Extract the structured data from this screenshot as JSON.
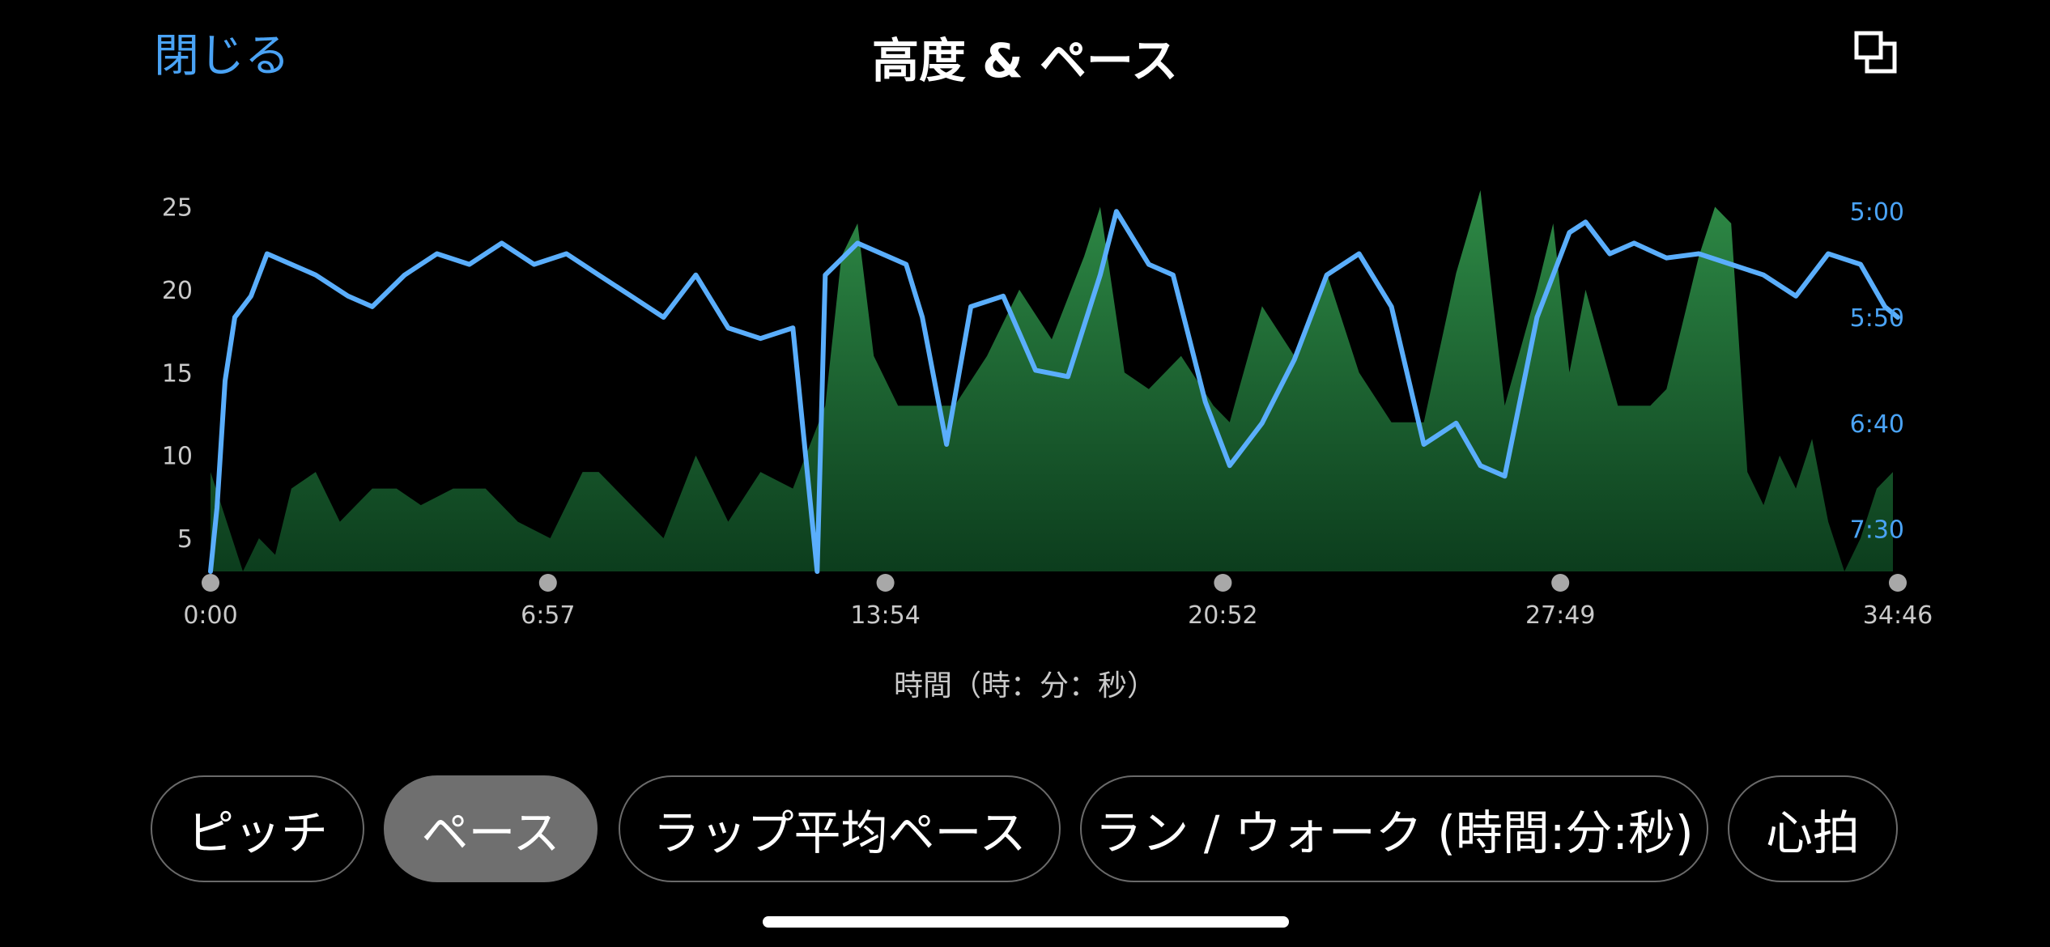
{
  "header": {
    "close_label": "閉じる",
    "title": "高度 & ペース",
    "expand_icon": "expand-icon"
  },
  "tabs": [
    {
      "label": "ピッチ",
      "active": false
    },
    {
      "label": "ペース",
      "active": true
    },
    {
      "label": "ラップ平均ペース",
      "active": false
    },
    {
      "label": "ラン / ウォーク (時間:分:秒)",
      "active": false
    },
    {
      "label": "心拍",
      "active": false
    }
  ],
  "colors": {
    "accent": "#4aa3f5",
    "elevation_fill_top": "#2e8a46",
    "elevation_fill_bottom": "#0c3d1d",
    "pace_line": "#5aaefc",
    "axis_text": "#c9c9c9",
    "tick_dot": "#a8a8a8"
  },
  "chart_data": {
    "type": "area",
    "xlabel": "時間（時：分：秒）",
    "x_ticks": [
      "0:00",
      "6:57",
      "13:54",
      "20:52",
      "27:49",
      "34:46"
    ],
    "x_range_seconds": [
      0,
      2086
    ],
    "y_left": {
      "ticks": [
        5,
        10,
        15,
        20,
        25
      ],
      "range": [
        3,
        26
      ]
    },
    "y_right": {
      "ticks": [
        "5:00",
        "5:50",
        "6:40",
        "7:30"
      ],
      "range_seconds_per_km": [
        290,
        470
      ],
      "inverted": true
    },
    "series": [
      {
        "kind": "elevation",
        "axis": "left",
        "style": "area",
        "x": [
          0,
          20,
          40,
          60,
          80,
          100,
          130,
          160,
          200,
          230,
          260,
          300,
          340,
          380,
          420,
          460,
          480,
          520,
          560,
          600,
          640,
          680,
          720,
          760,
          780,
          800,
          820,
          850,
          880,
          920,
          960,
          1000,
          1040,
          1080,
          1100,
          1130,
          1160,
          1200,
          1240,
          1260,
          1300,
          1340,
          1380,
          1420,
          1460,
          1500,
          1540,
          1570,
          1600,
          1640,
          1660,
          1680,
          1700,
          1740,
          1780,
          1800,
          1820,
          1840,
          1860,
          1880,
          1900,
          1920,
          1940,
          1960,
          1980,
          2000,
          2020,
          2040,
          2060,
          2080
        ],
        "y": [
          9,
          6,
          3,
          5,
          4,
          8,
          9,
          6,
          8,
          8,
          7,
          8,
          8,
          6,
          5,
          9,
          9,
          7,
          5,
          10,
          6,
          9,
          8,
          13,
          22,
          24,
          16,
          13,
          13,
          13,
          16,
          20,
          17,
          22,
          25,
          15,
          14,
          16,
          13,
          12,
          19,
          16,
          21,
          15,
          12,
          12,
          21,
          26,
          13,
          20,
          24,
          15,
          20,
          13,
          13,
          14,
          18,
          22,
          25,
          24,
          9,
          7,
          10,
          8,
          11,
          6,
          3,
          5,
          8,
          9
        ]
      },
      {
        "kind": "pace",
        "axis": "right",
        "style": "line",
        "x": [
          0,
          8,
          18,
          30,
          50,
          70,
          100,
          130,
          170,
          200,
          240,
          280,
          320,
          360,
          400,
          440,
          480,
          520,
          560,
          600,
          640,
          680,
          720,
          750,
          760,
          800,
          830,
          860,
          880,
          910,
          940,
          980,
          1020,
          1060,
          1100,
          1120,
          1160,
          1190,
          1230,
          1260,
          1300,
          1340,
          1380,
          1420,
          1460,
          1500,
          1540,
          1570,
          1600,
          1640,
          1680,
          1700,
          1730,
          1760,
          1800,
          1840,
          1880,
          1920,
          1960,
          2000,
          2040,
          2070,
          2086
        ],
        "y": [
          470,
          440,
          380,
          350,
          340,
          320,
          325,
          330,
          340,
          345,
          330,
          320,
          325,
          315,
          325,
          320,
          330,
          340,
          350,
          330,
          355,
          360,
          355,
          470,
          330,
          315,
          320,
          325,
          350,
          410,
          345,
          340,
          375,
          378,
          330,
          300,
          325,
          330,
          390,
          420,
          400,
          370,
          330,
          320,
          345,
          410,
          400,
          420,
          425,
          350,
          310,
          305,
          320,
          315,
          322,
          320,
          325,
          330,
          340,
          320,
          325,
          345,
          350
        ]
      }
    ]
  }
}
